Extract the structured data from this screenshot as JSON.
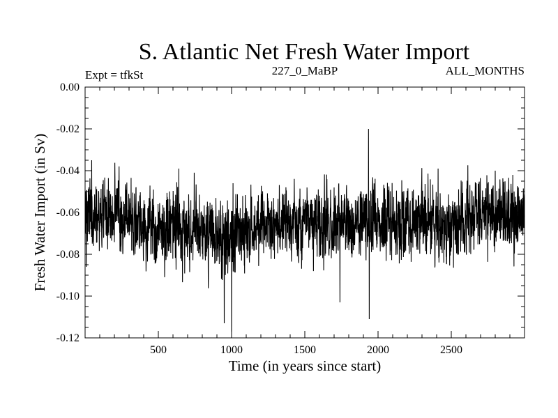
{
  "chart_data": {
    "type": "line",
    "title": "S. Atlantic Net Fresh Water Import",
    "subtitle_left": "Expt = tfkSt",
    "subtitle_center": "227_0_MaBP",
    "subtitle_right": "ALL_MONTHS",
    "xlabel": "Time (in years since start)",
    "ylabel": "Fresh Water Import (in Sv)",
    "xlim": [
      0,
      3000
    ],
    "ylim": [
      -0.12,
      0.0
    ],
    "x_ticks": [
      500,
      1000,
      1500,
      2000,
      2500
    ],
    "x_tick_labels": [
      "500",
      "1000",
      "1500",
      "2000",
      "2500"
    ],
    "y_ticks": [
      0.0,
      -0.02,
      -0.04,
      -0.06,
      -0.08,
      -0.1,
      -0.12
    ],
    "y_tick_labels": [
      "0.00",
      "-0.02",
      "-0.04",
      "-0.06",
      "-0.08",
      "-0.10",
      "-0.12"
    ],
    "grid": false,
    "series": [
      {
        "name": "Net Fresh Water Import",
        "x_start": 1,
        "x_step": 1,
        "num_points": 3000,
        "mean_profile_x": [
          0,
          300,
          400,
          600,
          800,
          1000,
          1100,
          1300,
          1500,
          1700,
          1900,
          2100,
          2300,
          2500,
          2700,
          2900,
          3000
        ],
        "mean_profile_y": [
          -0.061,
          -0.062,
          -0.066,
          -0.067,
          -0.07,
          -0.073,
          -0.069,
          -0.066,
          -0.065,
          -0.066,
          -0.064,
          -0.064,
          -0.063,
          -0.065,
          -0.06,
          -0.061,
          -0.062
        ],
        "noise_std": 0.0085,
        "extremes": [
          {
            "x": 3,
            "y": -0.05
          },
          {
            "x": 8,
            "y": -0.086
          },
          {
            "x": 45,
            "y": -0.035
          },
          {
            "x": 150,
            "y": -0.049
          },
          {
            "x": 640,
            "y": -0.039
          },
          {
            "x": 950,
            "y": -0.113
          },
          {
            "x": 1000,
            "y": -0.117
          },
          {
            "x": 1010,
            "y": -0.046
          },
          {
            "x": 1740,
            "y": -0.103
          },
          {
            "x": 1935,
            "y": -0.02
          },
          {
            "x": 1940,
            "y": -0.111
          },
          {
            "x": 2410,
            "y": -0.039
          },
          {
            "x": 2800,
            "y": -0.04
          },
          {
            "x": 2920,
            "y": -0.042
          }
        ],
        "color": "#000000"
      }
    ]
  }
}
